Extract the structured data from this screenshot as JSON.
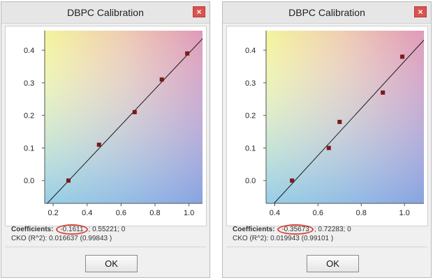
{
  "dialogs": [
    {
      "title": "DBPC Calibration",
      "close_label": "×",
      "coefficients_label": "Coefficients:",
      "coef_a": "-0.1611",
      "coef_rest": "; 0.55221; 0",
      "cko_text": "CKO (R^2): 0.016637 (0.99843 )",
      "ok_label": "OK",
      "chart_data": {
        "type": "scatter",
        "x_ticks": [
          "0.2",
          "0.4",
          "0.6",
          "0.8",
          "1.0"
        ],
        "y_ticks": [
          "0.0",
          "0.1",
          "0.2",
          "0.3",
          "0.4"
        ],
        "xlim": [
          0.15,
          1.08
        ],
        "ylim": [
          -0.07,
          0.46
        ],
        "points": [
          {
            "x": 0.29,
            "y": 0.0
          },
          {
            "x": 0.47,
            "y": 0.11
          },
          {
            "x": 0.68,
            "y": 0.21
          },
          {
            "x": 0.84,
            "y": 0.31
          },
          {
            "x": 0.99,
            "y": 0.39
          }
        ],
        "fit": {
          "slope": 0.55221,
          "intercept": -0.1611
        }
      }
    },
    {
      "title": "DBPC Calibration",
      "close_label": "×",
      "coefficients_label": "Coefficients:",
      "coef_a": "-0.35673",
      "coef_rest": "; 0.72283; 0",
      "cko_text": "CKO (R^2): 0.019943 (0.99101 )",
      "ok_label": "OK",
      "chart_data": {
        "type": "scatter",
        "x_ticks": [
          "0.4",
          "0.6",
          "0.8",
          "1.0"
        ],
        "y_ticks": [
          "0.0",
          "0.1",
          "0.2",
          "0.3",
          "0.4"
        ],
        "xlim": [
          0.36,
          1.09
        ],
        "ylim": [
          -0.07,
          0.46
        ],
        "points": [
          {
            "x": 0.48,
            "y": 0.0
          },
          {
            "x": 0.65,
            "y": 0.1
          },
          {
            "x": 0.7,
            "y": 0.18
          },
          {
            "x": 0.9,
            "y": 0.27
          },
          {
            "x": 0.99,
            "y": 0.38
          }
        ],
        "fit": {
          "slope": 0.72283,
          "intercept": -0.35673
        }
      }
    }
  ],
  "colors": {
    "marker": "#7a1a1a",
    "highlight": "#d9453b",
    "fit_line": "#1a1a1a"
  }
}
